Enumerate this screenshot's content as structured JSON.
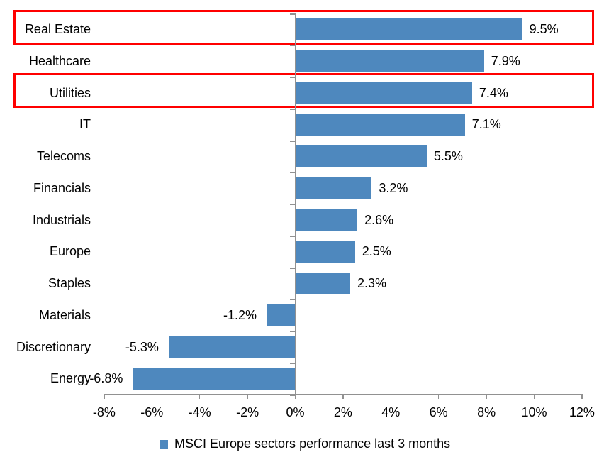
{
  "chart_data": {
    "type": "bar",
    "orientation": "horizontal",
    "title": "",
    "categories": [
      "Real Estate",
      "Healthcare",
      "Utilities",
      "IT",
      "Telecoms",
      "Financials",
      "Industrials",
      "Europe",
      "Staples",
      "Materials",
      "Discretionary",
      "Energy"
    ],
    "values": [
      9.5,
      7.9,
      7.4,
      7.1,
      5.5,
      3.2,
      2.6,
      2.5,
      2.3,
      -1.2,
      -5.3,
      -6.8
    ],
    "value_labels": [
      "9.5%",
      "7.9%",
      "7.4%",
      "7.1%",
      "5.5%",
      "3.2%",
      "2.6%",
      "2.5%",
      "2.3%",
      "-1.2%",
      "-5.3%",
      "-6.8%"
    ],
    "x_tick_labels": [
      "-8%",
      "-6%",
      "-4%",
      "-2%",
      "0%",
      "2%",
      "4%",
      "6%",
      "8%",
      "10%",
      "12%"
    ],
    "xlim": [
      -8,
      12
    ],
    "x_step": 2,
    "grid": "off",
    "legend_position": "bottom-center",
    "legend_label": "MSCI Europe sectors performance last 3 months",
    "bar_color": "#4E88BE",
    "axis_color": "#919191",
    "highlight_color": "#FF0000",
    "highlighted_categories": [
      "Real Estate",
      "Utilities"
    ]
  }
}
